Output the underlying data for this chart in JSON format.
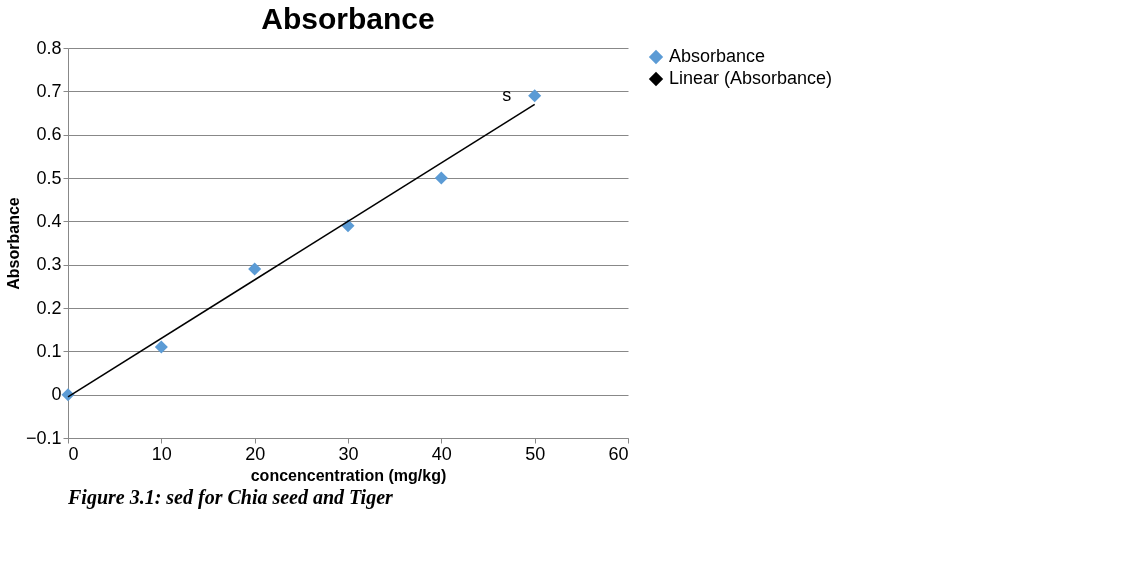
{
  "chart_data": {
    "type": "scatter",
    "title": "Absorbance",
    "xlabel": "concencentration (mg/kg)",
    "ylabel": "Absorbance",
    "xlim": [
      0,
      60
    ],
    "xticks": [
      0,
      10,
      20,
      30,
      40,
      50,
      60
    ],
    "ylim": [
      -0.1,
      0.8
    ],
    "yticks": [
      -0.1,
      0,
      0.1,
      0.2,
      0.3,
      0.4,
      0.5,
      0.6,
      0.7,
      0.8
    ],
    "grid": "y",
    "legend": "right",
    "series": [
      {
        "name": "Absorbance",
        "color": "#5b9bd5",
        "marker": "diamond",
        "x": [
          0,
          10,
          20,
          30,
          40,
          50
        ],
        "values": [
          0,
          0.11,
          0.29,
          0.39,
          0.5,
          0.69
        ]
      },
      {
        "name": "Linear (Absorbance)",
        "type": "line",
        "color": "#000000",
        "x": [
          0,
          50
        ],
        "values": [
          -0.005,
          0.67
        ]
      }
    ],
    "annotations": [
      {
        "text": "s",
        "x": 50,
        "y": 0.67
      },
      "Figure 3.1:",
      "sed for Chia seed and Tiger"
    ]
  }
}
